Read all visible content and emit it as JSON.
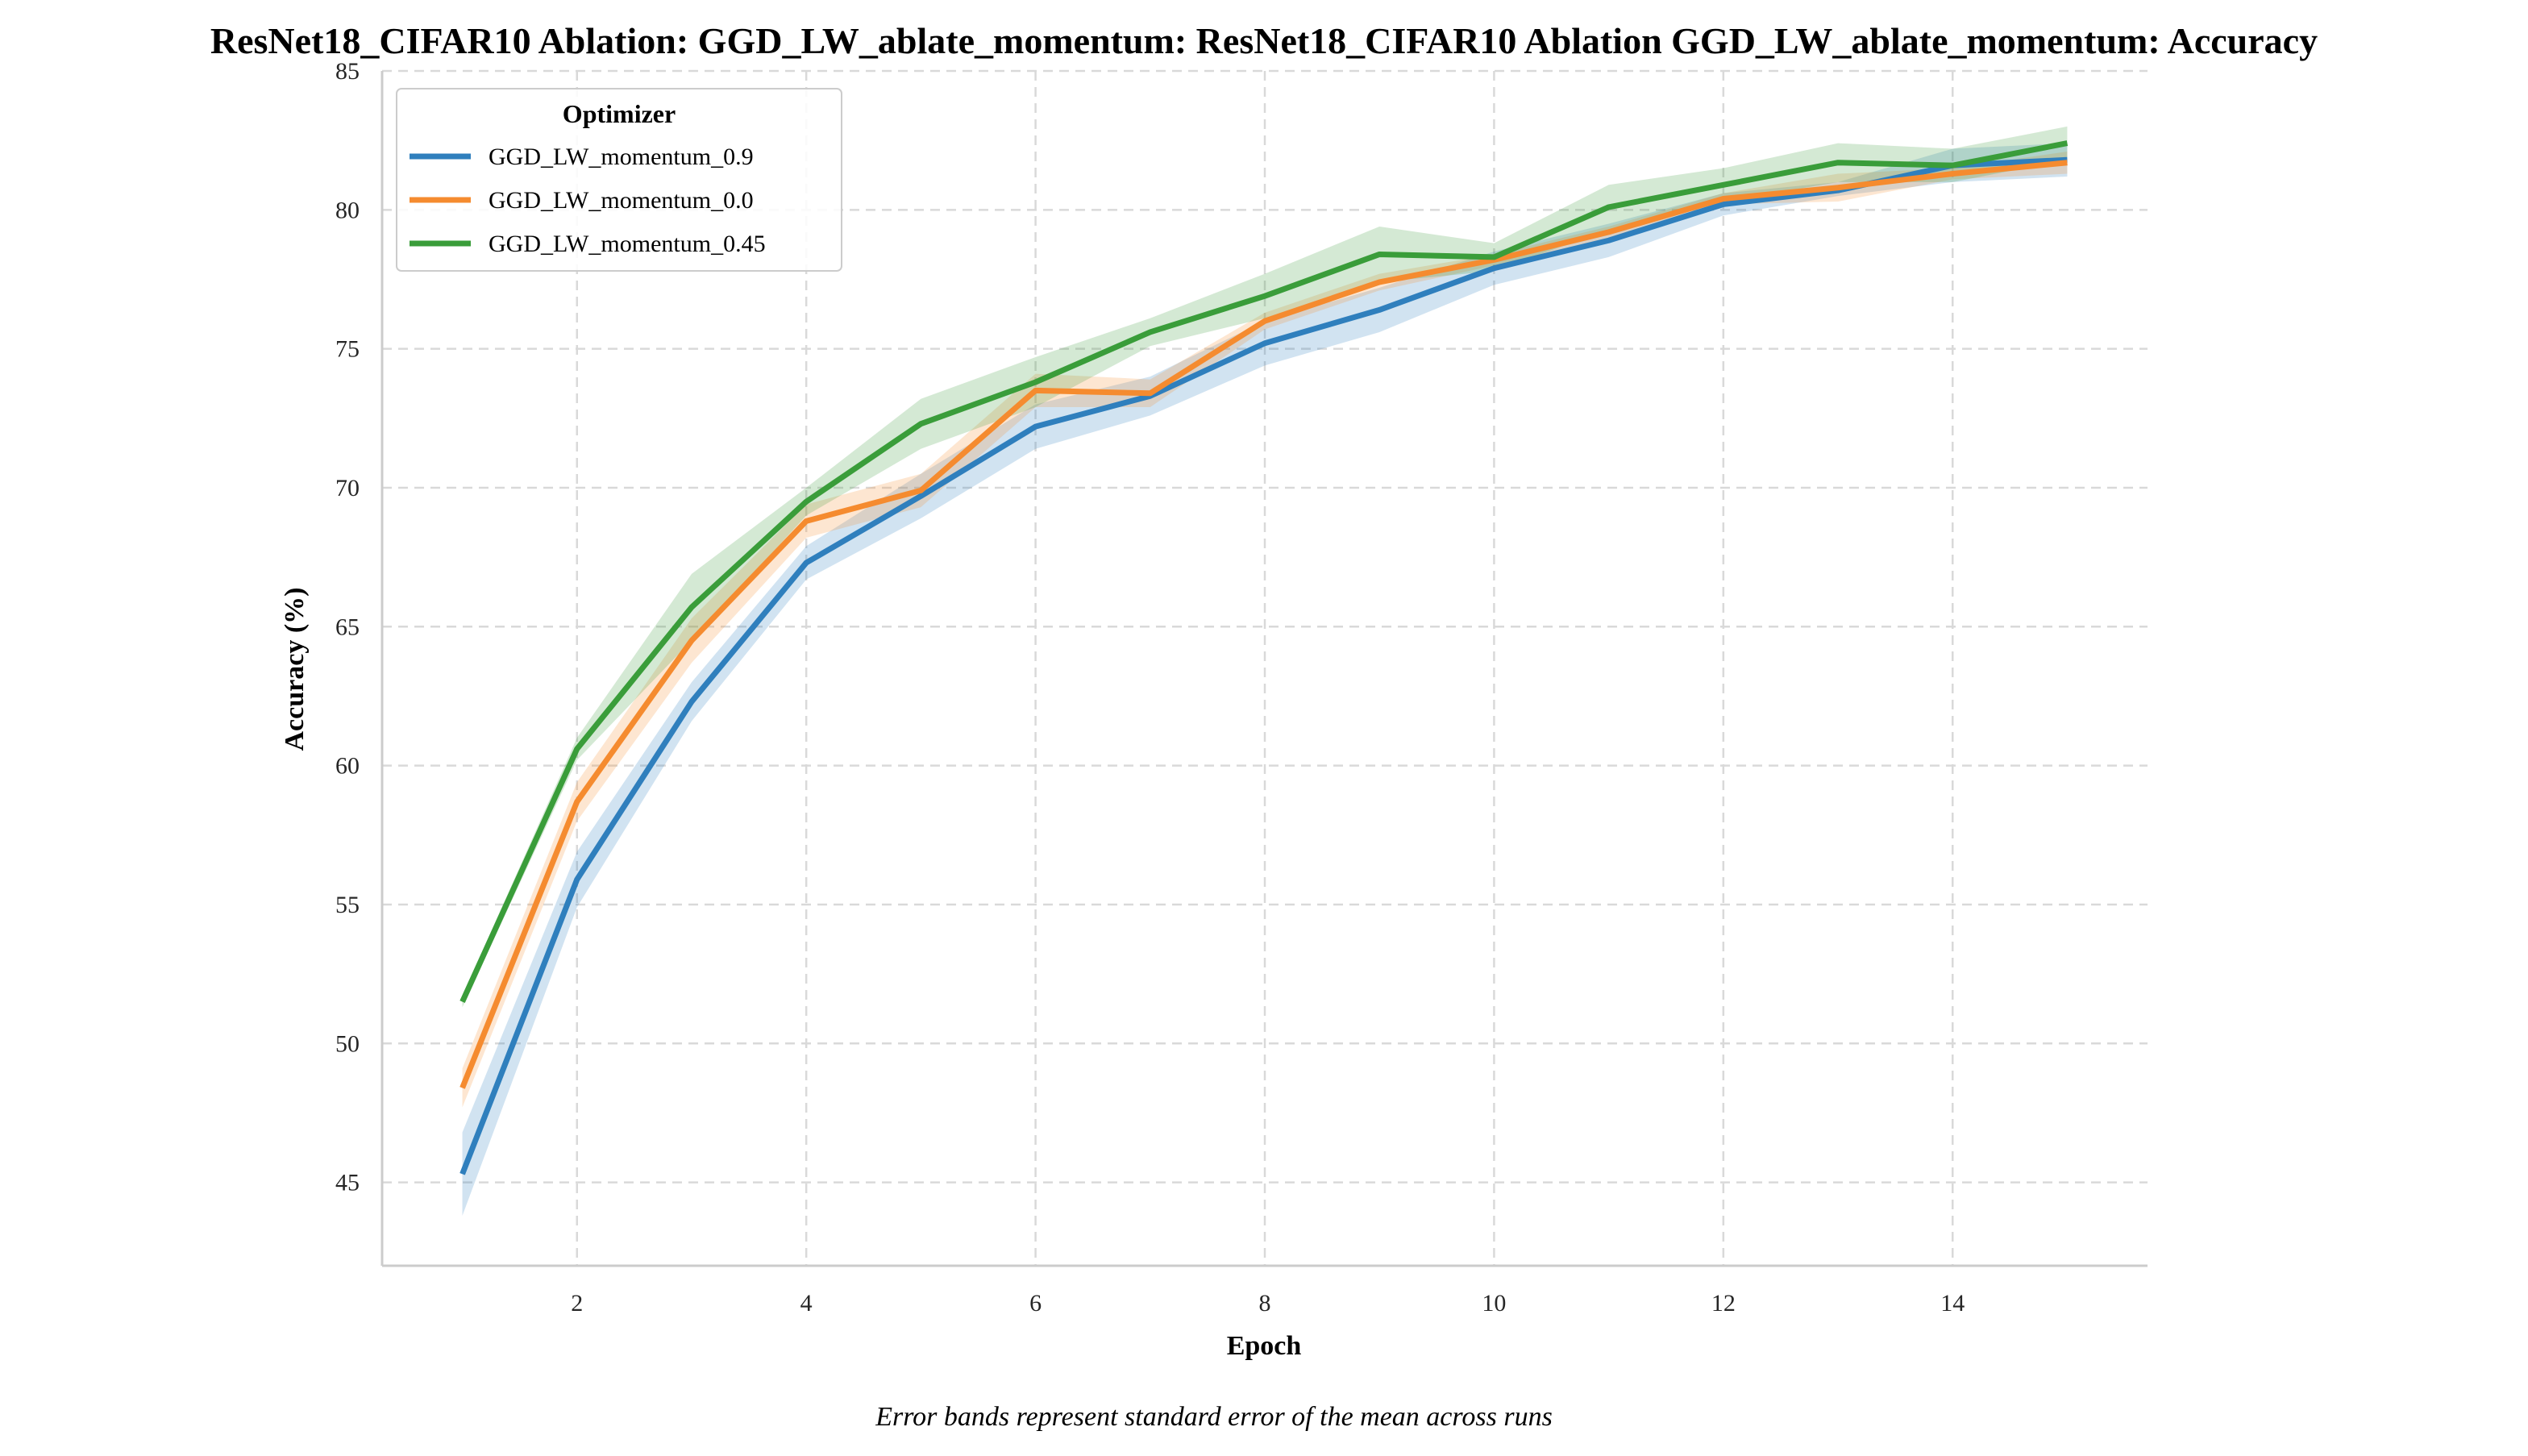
{
  "chart_data": {
    "type": "line",
    "title": "ResNet18_CIFAR10 Ablation: GGD_LW_ablate_momentum: ResNet18_CIFAR10 Ablation GGD_LW_ablate_momentum: Accuracy",
    "xlabel": "Epoch",
    "ylabel": "Accuracy (%)",
    "caption": "Error bands represent standard error of the mean across runs",
    "xlim": [
      0.3,
      15.7
    ],
    "ylim": [
      42,
      85
    ],
    "xticks": [
      2,
      4,
      6,
      8,
      10,
      12,
      14
    ],
    "yticks": [
      45,
      50,
      55,
      60,
      65,
      70,
      75,
      80,
      85
    ],
    "grid": true,
    "legend": {
      "title": "Optimizer",
      "placement": "top-left"
    },
    "x": [
      1,
      2,
      3,
      4,
      5,
      6,
      7,
      8,
      9,
      10,
      11,
      12,
      13,
      14,
      15
    ],
    "series": [
      {
        "name": "GGD_LW_momentum_0.9",
        "color": "#2f7fbd",
        "values": [
          45.3,
          55.9,
          62.3,
          67.3,
          69.7,
          72.2,
          73.3,
          75.2,
          76.4,
          77.9,
          78.9,
          80.2,
          80.7,
          81.6,
          81.8
        ],
        "lower": [
          43.8,
          54.9,
          61.6,
          66.7,
          68.9,
          71.4,
          72.6,
          74.4,
          75.6,
          77.3,
          78.3,
          79.8,
          80.5,
          81.0,
          81.2
        ],
        "upper": [
          46.8,
          56.9,
          63.0,
          67.9,
          70.5,
          73.0,
          74.0,
          76.0,
          77.2,
          78.5,
          79.5,
          80.6,
          81.0,
          82.2,
          82.4
        ]
      },
      {
        "name": "GGD_LW_momentum_0.0",
        "color": "#f58b2f",
        "values": [
          48.4,
          58.7,
          64.5,
          68.8,
          69.9,
          73.5,
          73.4,
          76.0,
          77.4,
          78.2,
          79.2,
          80.4,
          80.8,
          81.3,
          81.7
        ],
        "lower": [
          47.7,
          58.0,
          63.7,
          68.2,
          69.3,
          72.9,
          72.9,
          75.7,
          77.1,
          78.0,
          79.0,
          80.2,
          80.3,
          81.1,
          81.3
        ],
        "upper": [
          49.1,
          59.4,
          65.3,
          69.4,
          70.5,
          74.1,
          73.9,
          76.3,
          77.7,
          78.4,
          79.4,
          80.6,
          81.3,
          81.5,
          82.1
        ]
      },
      {
        "name": "GGD_LW_momentum_0.45",
        "color": "#3a9d3a",
        "values": [
          51.5,
          60.6,
          65.7,
          69.5,
          72.3,
          73.8,
          75.6,
          76.9,
          78.4,
          78.3,
          80.1,
          80.9,
          81.7,
          81.6,
          82.4
        ],
        "lower": [
          51.3,
          60.2,
          64.5,
          69.0,
          71.4,
          72.9,
          75.1,
          76.1,
          77.4,
          77.8,
          79.3,
          80.3,
          81.0,
          81.0,
          81.8
        ],
        "upper": [
          51.7,
          61.0,
          66.9,
          70.0,
          73.2,
          74.7,
          76.1,
          77.7,
          79.4,
          78.8,
          80.9,
          81.5,
          82.4,
          82.2,
          83.0
        ]
      }
    ]
  }
}
